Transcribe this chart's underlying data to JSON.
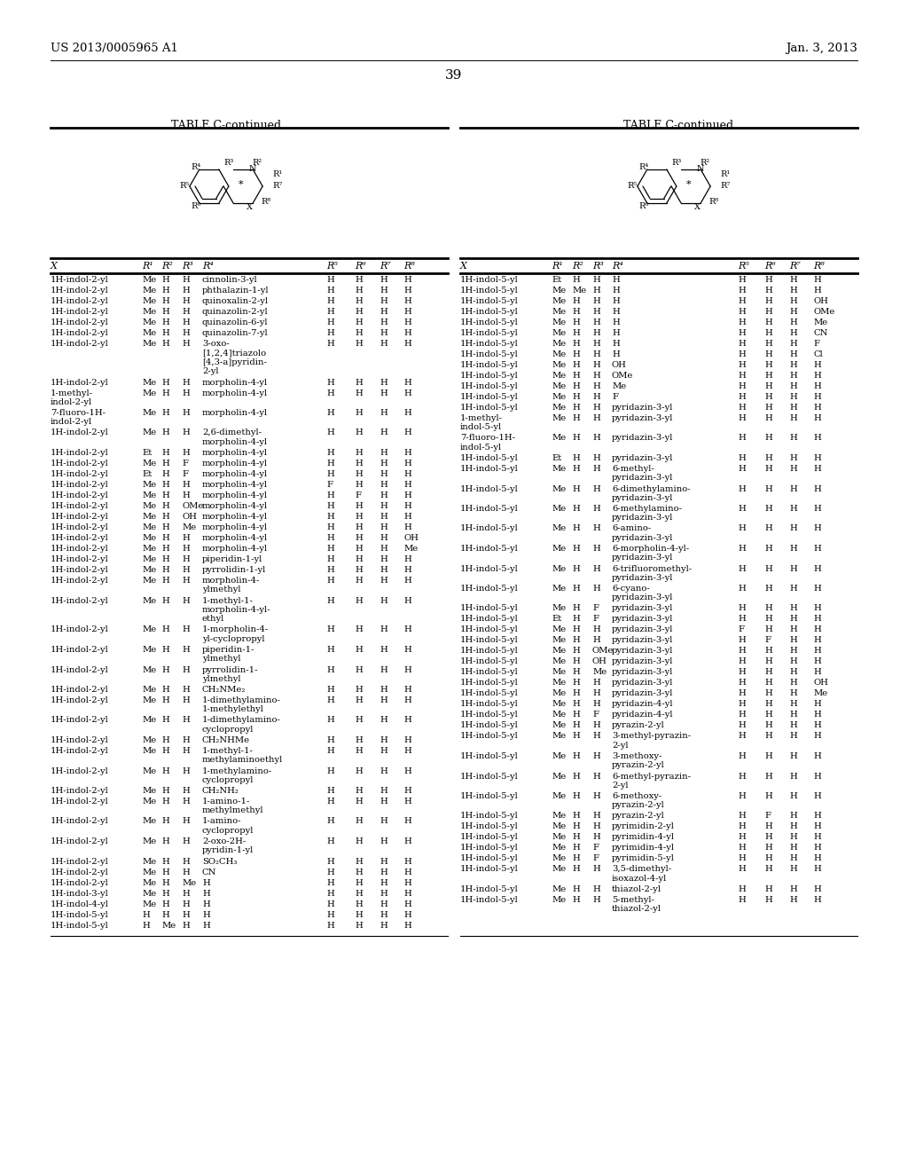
{
  "header_left": "US 2013/0005965 A1",
  "header_right": "Jan. 3, 2013",
  "page_number": "39",
  "table_title": "TABLE C-continued",
  "background_color": "#ffffff",
  "left_table_rows": [
    [
      "1H-indol-2-yl",
      "Me",
      "H",
      "H",
      "cinnolin-3-yl",
      "H",
      "H",
      "H",
      "H"
    ],
    [
      "1H-indol-2-yl",
      "Me",
      "H",
      "H",
      "phthalazin-1-yl",
      "H",
      "H",
      "H",
      "H"
    ],
    [
      "1H-indol-2-yl",
      "Me",
      "H",
      "H",
      "quinoxalin-2-yl",
      "H",
      "H",
      "H",
      "H"
    ],
    [
      "1H-indol-2-yl",
      "Me",
      "H",
      "H",
      "quinazolin-2-yl",
      "H",
      "H",
      "H",
      "H"
    ],
    [
      "1H-indol-2-yl",
      "Me",
      "H",
      "H",
      "quinazolin-6-yl",
      "H",
      "H",
      "H",
      "H"
    ],
    [
      "1H-indol-2-yl",
      "Me",
      "H",
      "H",
      "quinazolin-7-yl",
      "H",
      "H",
      "H",
      "H"
    ],
    [
      "1H-indol-2-yl",
      "Me",
      "H",
      "H",
      "3-oxo-\n[1,2,4]triazolo\n[4,3-a]pyridin-\n2-yl",
      "H",
      "H",
      "H",
      "H"
    ],
    [
      "1H-indol-2-yl",
      "Me",
      "H",
      "H",
      "morpholin-4-yl",
      "H",
      "H",
      "H",
      "H"
    ],
    [
      "1-methyl-\nindol-2-yl",
      "Me",
      "H",
      "H",
      "morpholin-4-yl",
      "H",
      "H",
      "H",
      "H"
    ],
    [
      "7-fluoro-1H-\nindol-2-yl",
      "Me",
      "H",
      "H",
      "morpholin-4-yl",
      "H",
      "H",
      "H",
      "H"
    ],
    [
      "1H-indol-2-yl",
      "Me",
      "H",
      "H",
      "2,6-dimethyl-\nmorpholin-4-yl",
      "H",
      "H",
      "H",
      "H"
    ],
    [
      "1H-indol-2-yl",
      "Et",
      "H",
      "H",
      "morpholin-4-yl",
      "H",
      "H",
      "H",
      "H"
    ],
    [
      "1H-indol-2-yl",
      "Me",
      "H",
      "F",
      "morpholin-4-yl",
      "H",
      "H",
      "H",
      "H"
    ],
    [
      "1H-indol-2-yl",
      "Et",
      "H",
      "F",
      "morpholin-4-yl",
      "H",
      "H",
      "H",
      "H"
    ],
    [
      "1H-indol-2-yl",
      "Me",
      "H",
      "H",
      "morpholin-4-yl",
      "F",
      "H",
      "H",
      "H"
    ],
    [
      "1H-indol-2-yl",
      "Me",
      "H",
      "H",
      "morpholin-4-yl",
      "H",
      "F",
      "H",
      "H"
    ],
    [
      "1H-indol-2-yl",
      "Me",
      "H",
      "OMe",
      "morpholin-4-yl",
      "H",
      "H",
      "H",
      "H"
    ],
    [
      "1H-indol-2-yl",
      "Me",
      "H",
      "OH",
      "morpholin-4-yl",
      "H",
      "H",
      "H",
      "H"
    ],
    [
      "1H-indol-2-yl",
      "Me",
      "H",
      "Me",
      "morpholin-4-yl",
      "H",
      "H",
      "H",
      "H"
    ],
    [
      "1H-indol-2-yl",
      "Me",
      "H",
      "H",
      "morpholin-4-yl",
      "H",
      "H",
      "H",
      "OH"
    ],
    [
      "1H-indol-2-yl",
      "Me",
      "H",
      "H",
      "morpholin-4-yl",
      "H",
      "H",
      "H",
      "Me"
    ],
    [
      "1H-indol-2-yl",
      "Me",
      "H",
      "H",
      "piperidin-1-yl",
      "H",
      "H",
      "H",
      "H"
    ],
    [
      "1H-indol-2-yl",
      "Me",
      "H",
      "H",
      "pyrrolidin-1-yl",
      "H",
      "H",
      "H",
      "H"
    ],
    [
      "1H-indol-2-yl",
      "Me",
      "H",
      "H",
      "morpholin-4-\nylmethyl",
      "H",
      "H",
      "H",
      "H"
    ],
    [
      "1H-indol-2-yl",
      "Me",
      "H",
      "H",
      "1-methyl-1-\nmorpholin-4-yl-\nethyl",
      "H",
      "H",
      "H",
      "H"
    ],
    [
      "1H-indol-2-yl",
      "Me",
      "H",
      "H",
      "1-morpholin-4-\nyl-cyclopropyl",
      "H",
      "H",
      "H",
      "H"
    ],
    [
      "1H-indol-2-yl",
      "Me",
      "H",
      "H",
      "piperidin-1-\nylmethyl",
      "H",
      "H",
      "H",
      "H"
    ],
    [
      "1H-indol-2-yl",
      "Me",
      "H",
      "H",
      "pyrrolidin-1-\nylmethyl",
      "H",
      "H",
      "H",
      "H"
    ],
    [
      "1H-indol-2-yl",
      "Me",
      "H",
      "H",
      "CH₂NMe₂",
      "H",
      "H",
      "H",
      "H"
    ],
    [
      "1H-indol-2-yl",
      "Me",
      "H",
      "H",
      "1-dimethylamino-\n1-methylethyl",
      "H",
      "H",
      "H",
      "H"
    ],
    [
      "1H-indol-2-yl",
      "Me",
      "H",
      "H",
      "1-dimethylamino-\ncyclopropyl",
      "H",
      "H",
      "H",
      "H"
    ],
    [
      "1H-indol-2-yl",
      "Me",
      "H",
      "H",
      "CH₂NHMe",
      "H",
      "H",
      "H",
      "H"
    ],
    [
      "1H-indol-2-yl",
      "Me",
      "H",
      "H",
      "1-methyl-1-\nmethylaminoethyl",
      "H",
      "H",
      "H",
      "H"
    ],
    [
      "1H-indol-2-yl",
      "Me",
      "H",
      "H",
      "1-methylamino-\ncyclopropyl",
      "H",
      "H",
      "H",
      "H"
    ],
    [
      "1H-indol-2-yl",
      "Me",
      "H",
      "H",
      "CH₂NH₂",
      "H",
      "H",
      "H",
      "H"
    ],
    [
      "1H-indol-2-yl",
      "Me",
      "H",
      "H",
      "1-amino-1-\nmethylmethyl",
      "H",
      "H",
      "H",
      "H"
    ],
    [
      "1H-indol-2-yl",
      "Me",
      "H",
      "H",
      "1-amino-\ncyclopropyl",
      "H",
      "H",
      "H",
      "H"
    ],
    [
      "1H-indol-2-yl",
      "Me",
      "H",
      "H",
      "2-oxo-2H-\npyridin-1-yl",
      "H",
      "H",
      "H",
      "H"
    ],
    [
      "1H-indol-2-yl",
      "Me",
      "H",
      "H",
      "SO₂CH₃",
      "H",
      "H",
      "H",
      "H"
    ],
    [
      "1H-indol-2-yl",
      "Me",
      "H",
      "H",
      "CN",
      "H",
      "H",
      "H",
      "H"
    ],
    [
      "1H-indol-2-yl",
      "Me",
      "H",
      "Me",
      "H",
      "H",
      "H",
      "H",
      "H"
    ],
    [
      "1H-indol-3-yl",
      "Me",
      "H",
      "H",
      "H",
      "H",
      "H",
      "H",
      "H"
    ],
    [
      "1H-indol-4-yl",
      "Me",
      "H",
      "H",
      "H",
      "H",
      "H",
      "H",
      "H"
    ],
    [
      "1H-indol-5-yl",
      "H",
      "H",
      "H",
      "H",
      "H",
      "H",
      "H",
      "H"
    ],
    [
      "1H-indol-5-yl",
      "H",
      "Me",
      "H",
      "H",
      "H",
      "H",
      "H",
      "H"
    ]
  ],
  "right_table_rows": [
    [
      "1H-indol-5-yl",
      "Et",
      "H",
      "H",
      "H",
      "H",
      "H",
      "H",
      "H"
    ],
    [
      "1H-indol-5-yl",
      "Me",
      "Me",
      "H",
      "H",
      "H",
      "H",
      "H",
      "H"
    ],
    [
      "1H-indol-5-yl",
      "Me",
      "H",
      "H",
      "H",
      "H",
      "H",
      "H",
      "OH"
    ],
    [
      "1H-indol-5-yl",
      "Me",
      "H",
      "H",
      "H",
      "H",
      "H",
      "H",
      "OMe"
    ],
    [
      "1H-indol-5-yl",
      "Me",
      "H",
      "H",
      "H",
      "H",
      "H",
      "H",
      "Me"
    ],
    [
      "1H-indol-5-yl",
      "Me",
      "H",
      "H",
      "H",
      "H",
      "H",
      "H",
      "CN"
    ],
    [
      "1H-indol-5-yl",
      "Me",
      "H",
      "H",
      "H",
      "H",
      "H",
      "H",
      "F"
    ],
    [
      "1H-indol-5-yl",
      "Me",
      "H",
      "H",
      "H",
      "H",
      "H",
      "H",
      "Cl"
    ],
    [
      "1H-indol-5-yl",
      "Me",
      "H",
      "H",
      "OH",
      "H",
      "H",
      "H",
      "H"
    ],
    [
      "1H-indol-5-yl",
      "Me",
      "H",
      "H",
      "OMe",
      "H",
      "H",
      "H",
      "H"
    ],
    [
      "1H-indol-5-yl",
      "Me",
      "H",
      "H",
      "Me",
      "H",
      "H",
      "H",
      "H"
    ],
    [
      "1H-indol-5-yl",
      "Me",
      "H",
      "H",
      "F",
      "H",
      "H",
      "H",
      "H"
    ],
    [
      "1H-indol-5-yl",
      "Me",
      "H",
      "H",
      "pyridazin-3-yl",
      "H",
      "H",
      "H",
      "H"
    ],
    [
      "1-methyl-\nindol-5-yl",
      "Me",
      "H",
      "H",
      "pyridazin-3-yl",
      "H",
      "H",
      "H",
      "H"
    ],
    [
      "7-fluoro-1H-\nindol-5-yl",
      "Me",
      "H",
      "H",
      "pyridazin-3-yl",
      "H",
      "H",
      "H",
      "H"
    ],
    [
      "1H-indol-5-yl",
      "Et",
      "H",
      "H",
      "pyridazin-3-yl",
      "H",
      "H",
      "H",
      "H"
    ],
    [
      "1H-indol-5-yl",
      "Me",
      "H",
      "H",
      "6-methyl-\npyridazin-3-yl",
      "H",
      "H",
      "H",
      "H"
    ],
    [
      "1H-indol-5-yl",
      "Me",
      "H",
      "H",
      "6-dimethylamino-\npyridazin-3-yl",
      "H",
      "H",
      "H",
      "H"
    ],
    [
      "1H-indol-5-yl",
      "Me",
      "H",
      "H",
      "6-methylamino-\npyridazin-3-yl",
      "H",
      "H",
      "H",
      "H"
    ],
    [
      "1H-indol-5-yl",
      "Me",
      "H",
      "H",
      "6-amino-\npyridazin-3-yl",
      "H",
      "H",
      "H",
      "H"
    ],
    [
      "1H-indol-5-yl",
      "Me",
      "H",
      "H",
      "6-morpholin-4-yl-\npyridazin-3-yl",
      "H",
      "H",
      "H",
      "H"
    ],
    [
      "1H-indol-5-yl",
      "Me",
      "H",
      "H",
      "6-trifluoromethyl-\npyridazin-3-yl",
      "H",
      "H",
      "H",
      "H"
    ],
    [
      "1H-indol-5-yl",
      "Me",
      "H",
      "H",
      "6-cyano-\npyridazin-3-yl",
      "H",
      "H",
      "H",
      "H"
    ],
    [
      "1H-indol-5-yl",
      "Me",
      "H",
      "F",
      "pyridazin-3-yl",
      "H",
      "H",
      "H",
      "H"
    ],
    [
      "1H-indol-5-yl",
      "Et",
      "H",
      "F",
      "pyridazin-3-yl",
      "H",
      "H",
      "H",
      "H"
    ],
    [
      "1H-indol-5-yl",
      "Me",
      "H",
      "H",
      "pyridazin-3-yl",
      "F",
      "H",
      "H",
      "H"
    ],
    [
      "1H-indol-5-yl",
      "Me",
      "H",
      "H",
      "pyridazin-3-yl",
      "H",
      "F",
      "H",
      "H"
    ],
    [
      "1H-indol-5-yl",
      "Me",
      "H",
      "OMe",
      "pyridazin-3-yl",
      "H",
      "H",
      "H",
      "H"
    ],
    [
      "1H-indol-5-yl",
      "Me",
      "H",
      "OH",
      "pyridazin-3-yl",
      "H",
      "H",
      "H",
      "H"
    ],
    [
      "1H-indol-5-yl",
      "Me",
      "H",
      "Me",
      "pyridazin-3-yl",
      "H",
      "H",
      "H",
      "H"
    ],
    [
      "1H-indol-5-yl",
      "Me",
      "H",
      "H",
      "pyridazin-3-yl",
      "H",
      "H",
      "H",
      "OH"
    ],
    [
      "1H-indol-5-yl",
      "Me",
      "H",
      "H",
      "pyridazin-3-yl",
      "H",
      "H",
      "H",
      "Me"
    ],
    [
      "1H-indol-5-yl",
      "Me",
      "H",
      "H",
      "pyridazin-4-yl",
      "H",
      "H",
      "H",
      "H"
    ],
    [
      "1H-indol-5-yl",
      "Me",
      "H",
      "F",
      "pyridazin-4-yl",
      "H",
      "H",
      "H",
      "H"
    ],
    [
      "1H-indol-5-yl",
      "Me",
      "H",
      "H",
      "pyrazin-2-yl",
      "H",
      "H",
      "H",
      "H"
    ],
    [
      "1H-indol-5-yl",
      "Me",
      "H",
      "H",
      "3-methyl-pyrazin-\n2-yl",
      "H",
      "H",
      "H",
      "H"
    ],
    [
      "1H-indol-5-yl",
      "Me",
      "H",
      "H",
      "3-methoxy-\npyrazin-2-yl",
      "H",
      "H",
      "H",
      "H"
    ],
    [
      "1H-indol-5-yl",
      "Me",
      "H",
      "H",
      "6-methyl-pyrazin-\n2-yl",
      "H",
      "H",
      "H",
      "H"
    ],
    [
      "1H-indol-5-yl",
      "Me",
      "H",
      "H",
      "6-methoxy-\npyrazin-2-yl",
      "H",
      "H",
      "H",
      "H"
    ],
    [
      "1H-indol-5-yl",
      "Me",
      "H",
      "H",
      "pyrazin-2-yl",
      "H",
      "F",
      "H",
      "H"
    ],
    [
      "1H-indol-5-yl",
      "Me",
      "H",
      "H",
      "pyrimidin-2-yl",
      "H",
      "H",
      "H",
      "H"
    ],
    [
      "1H-indol-5-yl",
      "Me",
      "H",
      "H",
      "pyrimidin-4-yl",
      "H",
      "H",
      "H",
      "H"
    ],
    [
      "1H-indol-5-yl",
      "Me",
      "H",
      "F",
      "pyrimidin-4-yl",
      "H",
      "H",
      "H",
      "H"
    ],
    [
      "1H-indol-5-yl",
      "Me",
      "H",
      "F",
      "pyrimidin-5-yl",
      "H",
      "H",
      "H",
      "H"
    ],
    [
      "1H-indol-5-yl",
      "Me",
      "H",
      "H",
      "3,5-dimethyl-\nisoxazol-4-yl",
      "H",
      "H",
      "H",
      "H"
    ],
    [
      "1H-indol-5-yl",
      "Me",
      "H",
      "H",
      "thiazol-2-yl",
      "H",
      "H",
      "H",
      "H"
    ],
    [
      "1H-indol-5-yl",
      "Me",
      "H",
      "H",
      "5-methyl-\nthiazol-2-yl",
      "H",
      "H",
      "H",
      "H"
    ]
  ]
}
